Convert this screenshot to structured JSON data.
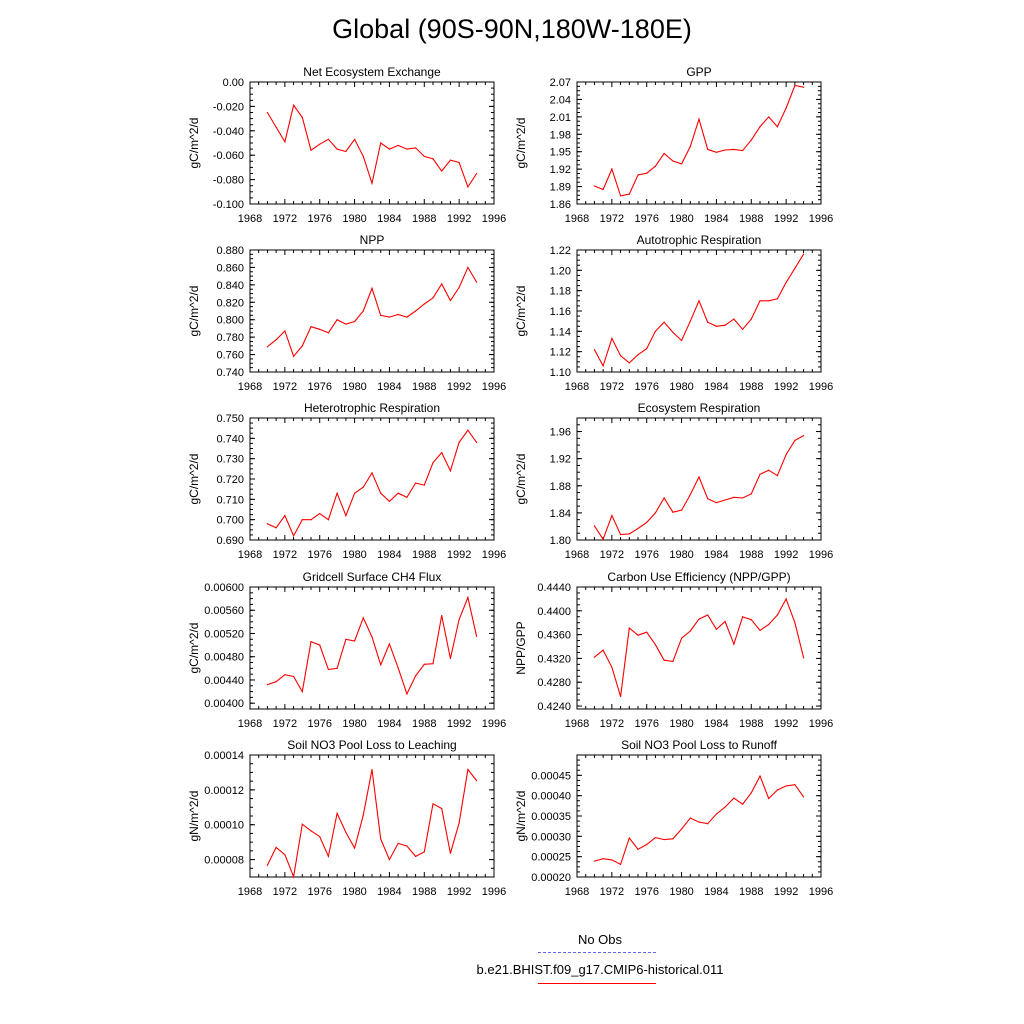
{
  "page": {
    "title": "Global (90S-90N,180W-180E)",
    "legend": [
      {
        "label": "No Obs",
        "color": "#6666ee",
        "dashed": true
      },
      {
        "label": "b.e21.BHIST.f09_g17.CMIP6-historical.011",
        "color": "#ff0000",
        "dashed": false
      }
    ]
  },
  "chart_data": [
    {
      "type": "line",
      "title": "Net Ecosystem Exchange",
      "xlabel": "",
      "ylabel": "gC/m^2/d",
      "xlim": [
        1968,
        1996
      ],
      "ylim": [
        -0.1,
        0.0
      ],
      "xticks": [
        "1968",
        "1972",
        "1976",
        "1980",
        "1984",
        "1988",
        "1992",
        "1996"
      ],
      "yticks": [
        "-0.100",
        "-0.080",
        "-0.060",
        "-0.040",
        "-0.020",
        "0.00"
      ],
      "series": [
        {
          "color": "#ff0000",
          "x": [
            1970,
            1971,
            1972,
            1973,
            1974,
            1975,
            1976,
            1977,
            1978,
            1979,
            1980,
            1981,
            1982,
            1983,
            1984,
            1985,
            1986,
            1987,
            1988,
            1989,
            1990,
            1991,
            1992,
            1993,
            1994
          ],
          "values": [
            -0.025,
            -0.037,
            -0.049,
            -0.019,
            -0.029,
            -0.056,
            -0.051,
            -0.047,
            -0.055,
            -0.057,
            -0.047,
            -0.061,
            -0.083,
            -0.05,
            -0.055,
            -0.052,
            -0.055,
            -0.054,
            -0.061,
            -0.063,
            -0.073,
            -0.064,
            -0.066,
            -0.086,
            -0.075
          ]
        }
      ]
    },
    {
      "type": "line",
      "title": "GPP",
      "xlabel": "",
      "ylabel": "gC/m^2/d",
      "xlim": [
        1968,
        1996
      ],
      "ylim": [
        1.86,
        2.07
      ],
      "xticks": [
        "1968",
        "1972",
        "1976",
        "1980",
        "1984",
        "1988",
        "1992",
        "1996"
      ],
      "yticks": [
        "1.86",
        "1.89",
        "1.92",
        "1.95",
        "1.98",
        "2.01",
        "2.04",
        "2.07"
      ],
      "series": [
        {
          "color": "#ff0000",
          "x": [
            1970,
            1971,
            1972,
            1973,
            1974,
            1975,
            1976,
            1977,
            1978,
            1979,
            1980,
            1981,
            1982,
            1983,
            1984,
            1985,
            1986,
            1987,
            1988,
            1989,
            1990,
            1991,
            1992,
            1993,
            1994
          ],
          "values": [
            1.891,
            1.885,
            1.92,
            1.874,
            1.877,
            1.91,
            1.913,
            1.925,
            1.947,
            1.934,
            1.929,
            1.959,
            2.006,
            1.954,
            1.949,
            1.953,
            1.954,
            1.952,
            1.97,
            1.993,
            2.01,
            1.993,
            2.025,
            2.064,
            2.061
          ]
        }
      ]
    },
    {
      "type": "line",
      "title": "NPP",
      "xlabel": "",
      "ylabel": "gC/m^2/d",
      "xlim": [
        1968,
        1996
      ],
      "ylim": [
        0.74,
        0.88
      ],
      "xticks": [
        "1968",
        "1972",
        "1976",
        "1980",
        "1984",
        "1988",
        "1992",
        "1996"
      ],
      "yticks": [
        "0.740",
        "0.760",
        "0.780",
        "0.800",
        "0.820",
        "0.840",
        "0.860",
        "0.880"
      ],
      "series": [
        {
          "color": "#ff0000",
          "x": [
            1970,
            1971,
            1972,
            1973,
            1974,
            1975,
            1976,
            1977,
            1978,
            1979,
            1980,
            1981,
            1982,
            1983,
            1984,
            1985,
            1986,
            1987,
            1988,
            1989,
            1990,
            1991,
            1992,
            1993,
            1994
          ],
          "values": [
            0.769,
            0.777,
            0.787,
            0.758,
            0.77,
            0.792,
            0.789,
            0.785,
            0.8,
            0.795,
            0.798,
            0.81,
            0.836,
            0.805,
            0.803,
            0.806,
            0.803,
            0.81,
            0.818,
            0.825,
            0.841,
            0.822,
            0.837,
            0.86,
            0.843
          ]
        }
      ]
    },
    {
      "type": "line",
      "title": "Autotrophic Respiration",
      "xlabel": "",
      "ylabel": "gC/m^2/d",
      "xlim": [
        1968,
        1996
      ],
      "ylim": [
        1.1,
        1.22
      ],
      "xticks": [
        "1968",
        "1972",
        "1976",
        "1980",
        "1984",
        "1988",
        "1992",
        "1996"
      ],
      "yticks": [
        "1.10",
        "1.12",
        "1.14",
        "1.16",
        "1.18",
        "1.20",
        "1.22"
      ],
      "series": [
        {
          "color": "#ff0000",
          "x": [
            1970,
            1971,
            1972,
            1973,
            1974,
            1975,
            1976,
            1977,
            1978,
            1979,
            1980,
            1981,
            1982,
            1983,
            1984,
            1985,
            1986,
            1987,
            1988,
            1989,
            1990,
            1991,
            1992,
            1993,
            1994
          ],
          "values": [
            1.122,
            1.106,
            1.133,
            1.116,
            1.109,
            1.117,
            1.123,
            1.14,
            1.149,
            1.139,
            1.131,
            1.15,
            1.17,
            1.149,
            1.145,
            1.146,
            1.152,
            1.142,
            1.152,
            1.17,
            1.17,
            1.172,
            1.188,
            1.202,
            1.216
          ]
        }
      ]
    },
    {
      "type": "line",
      "title": "Heterotrophic Respiration",
      "xlabel": "",
      "ylabel": "gC/m^2/d",
      "xlim": [
        1968,
        1996
      ],
      "ylim": [
        0.69,
        0.75
      ],
      "xticks": [
        "1968",
        "1972",
        "1976",
        "1980",
        "1984",
        "1988",
        "1992",
        "1996"
      ],
      "yticks": [
        "0.690",
        "0.700",
        "0.710",
        "0.720",
        "0.730",
        "0.740",
        "0.750"
      ],
      "series": [
        {
          "color": "#ff0000",
          "x": [
            1970,
            1971,
            1972,
            1973,
            1974,
            1975,
            1976,
            1977,
            1978,
            1979,
            1980,
            1981,
            1982,
            1983,
            1984,
            1985,
            1986,
            1987,
            1988,
            1989,
            1990,
            1991,
            1992,
            1993,
            1994
          ],
          "values": [
            0.698,
            0.696,
            0.702,
            0.692,
            0.7,
            0.7,
            0.703,
            0.7,
            0.713,
            0.702,
            0.713,
            0.716,
            0.723,
            0.713,
            0.709,
            0.713,
            0.711,
            0.718,
            0.717,
            0.728,
            0.733,
            0.724,
            0.738,
            0.744,
            0.738
          ]
        }
      ]
    },
    {
      "type": "line",
      "title": "Ecosystem Respiration",
      "xlabel": "",
      "ylabel": "gC/m^2/d",
      "xlim": [
        1968,
        1996
      ],
      "ylim": [
        1.8,
        1.98
      ],
      "xticks": [
        "1968",
        "1972",
        "1976",
        "1980",
        "1984",
        "1988",
        "1992",
        "1996"
      ],
      "yticks": [
        "1.80",
        "1.84",
        "1.88",
        "1.92",
        "1.96"
      ],
      "series": [
        {
          "color": "#ff0000",
          "x": [
            1970,
            1971,
            1972,
            1973,
            1974,
            1975,
            1976,
            1977,
            1978,
            1979,
            1980,
            1981,
            1982,
            1983,
            1984,
            1985,
            1986,
            1987,
            1988,
            1989,
            1990,
            1991,
            1992,
            1993,
            1994
          ],
          "values": [
            1.821,
            1.801,
            1.836,
            1.808,
            1.809,
            1.817,
            1.826,
            1.84,
            1.862,
            1.841,
            1.844,
            1.867,
            1.893,
            1.861,
            1.855,
            1.859,
            1.863,
            1.862,
            1.868,
            1.897,
            1.903,
            1.895,
            1.926,
            1.947,
            1.954
          ]
        }
      ]
    },
    {
      "type": "line",
      "title": "Gridcell Surface CH4 Flux",
      "xlabel": "",
      "ylabel": "gC/m^2/d",
      "xlim": [
        1968,
        1996
      ],
      "ylim": [
        0.0039,
        0.006
      ],
      "xticks": [
        "1968",
        "1972",
        "1976",
        "1980",
        "1984",
        "1988",
        "1992",
        "1996"
      ],
      "yticks": [
        "0.00400",
        "0.00440",
        "0.00480",
        "0.00520",
        "0.00560",
        "0.00600"
      ],
      "series": [
        {
          "color": "#ff0000",
          "x": [
            1970,
            1971,
            1972,
            1973,
            1974,
            1975,
            1976,
            1977,
            1978,
            1979,
            1980,
            1981,
            1982,
            1983,
            1984,
            1985,
            1986,
            1987,
            1988,
            1989,
            1990,
            1991,
            1992,
            1993,
            1994
          ],
          "values": [
            0.00432,
            0.00437,
            0.00449,
            0.00446,
            0.0042,
            0.00506,
            0.005,
            0.00458,
            0.0046,
            0.0051,
            0.00507,
            0.00547,
            0.00514,
            0.00466,
            0.00502,
            0.00461,
            0.00416,
            0.00447,
            0.00467,
            0.00468,
            0.00551,
            0.00477,
            0.00544,
            0.00582,
            0.00515
          ]
        }
      ]
    },
    {
      "type": "line",
      "title": "Carbon Use Efficiency (NPP/GPP)",
      "xlabel": "",
      "ylabel": "NPP/GPP",
      "xlim": [
        1968,
        1996
      ],
      "ylim": [
        0.4235,
        0.444
      ],
      "xticks": [
        "1968",
        "1972",
        "1976",
        "1980",
        "1984",
        "1988",
        "1992",
        "1996"
      ],
      "yticks": [
        "0.4240",
        "0.4280",
        "0.4320",
        "0.4360",
        "0.4400",
        "0.4440"
      ],
      "series": [
        {
          "color": "#ff0000",
          "x": [
            1970,
            1971,
            1972,
            1973,
            1974,
            1975,
            1976,
            1977,
            1978,
            1979,
            1980,
            1981,
            1982,
            1983,
            1984,
            1985,
            1986,
            1987,
            1988,
            1989,
            1990,
            1991,
            1992,
            1993,
            1994
          ],
          "values": [
            0.4322,
            0.4334,
            0.4305,
            0.4256,
            0.4371,
            0.4359,
            0.4364,
            0.4343,
            0.4317,
            0.4315,
            0.4354,
            0.4366,
            0.4386,
            0.4393,
            0.4369,
            0.4382,
            0.4344,
            0.439,
            0.4385,
            0.4367,
            0.4377,
            0.4393,
            0.442,
            0.438,
            0.4321
          ]
        }
      ]
    },
    {
      "type": "line",
      "title": "Soil NO3 Pool Loss to Leaching",
      "xlabel": "",
      "ylabel": "gN/m^2/d",
      "xlim": [
        1968,
        1996
      ],
      "ylim": [
        7e-05,
        0.00014
      ],
      "xticks": [
        "1968",
        "1972",
        "1976",
        "1980",
        "1984",
        "1988",
        "1992",
        "1996"
      ],
      "yticks": [
        "0.00008",
        "0.00010",
        "0.00012",
        "0.00014"
      ],
      "series": [
        {
          "color": "#ff0000",
          "x": [
            1970,
            1971,
            1972,
            1973,
            1974,
            1975,
            1976,
            1977,
            1978,
            1979,
            1980,
            1981,
            1982,
            1983,
            1984,
            1985,
            1986,
            1987,
            1988,
            1989,
            1990,
            1991,
            1992,
            1993,
            1994
          ],
          "values": [
            7.67e-05,
            8.7e-05,
            8.28e-05,
            7.02e-05,
            0.0001003,
            9.65e-05,
            9.32e-05,
            8.19e-05,
            0.0001065,
            9.56e-05,
            8.66e-05,
            0.0001056,
            0.0001316,
            9.18e-05,
            8e-05,
            8.93e-05,
            8.78e-05,
            8.18e-05,
            8.44e-05,
            0.000112,
            0.0001093,
            8.36e-05,
            0.000101,
            0.0001317,
            0.0001253
          ]
        }
      ]
    },
    {
      "type": "line",
      "title": "Soil NO3 Pool Loss to Runoff",
      "xlabel": "",
      "ylabel": "gN/m^2/d",
      "xlim": [
        1968,
        1996
      ],
      "ylim": [
        0.0002,
        0.0005
      ],
      "xticks": [
        "1968",
        "1972",
        "1976",
        "1980",
        "1984",
        "1988",
        "1992",
        "1996"
      ],
      "yticks": [
        "0.00020",
        "0.00025",
        "0.00030",
        "0.00035",
        "0.00040",
        "0.00045"
      ],
      "series": [
        {
          "color": "#ff0000",
          "x": [
            1970,
            1971,
            1972,
            1973,
            1974,
            1975,
            1976,
            1977,
            1978,
            1979,
            1980,
            1981,
            1982,
            1983,
            1984,
            1985,
            1986,
            1987,
            1988,
            1989,
            1990,
            1991,
            1992,
            1993,
            1994
          ],
          "values": [
            0.000239,
            0.000245,
            0.000242,
            0.000231,
            0.000296,
            0.000268,
            0.00028,
            0.000297,
            0.000292,
            0.000294,
            0.000318,
            0.000345,
            0.000335,
            0.000331,
            0.000355,
            0.000372,
            0.000394,
            0.000379,
            0.000407,
            0.000448,
            0.000393,
            0.000414,
            0.000424,
            0.000427,
            0.000397
          ]
        }
      ]
    }
  ]
}
